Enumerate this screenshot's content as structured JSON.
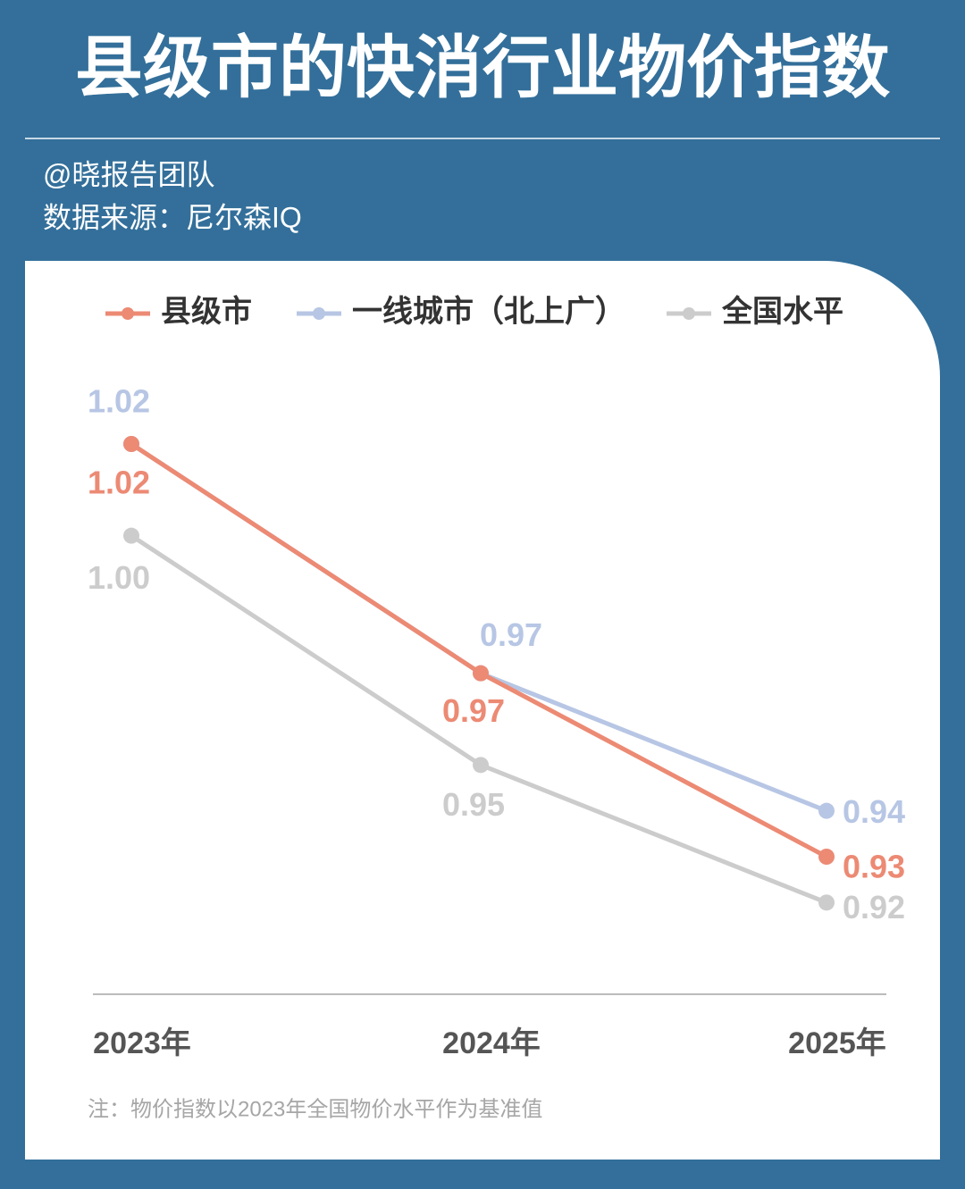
{
  "chart_data": {
    "type": "line",
    "title": "县级市的快消行业物价指数",
    "author": "@晓报告团队",
    "source": "数据来源：尼尔森IQ",
    "note": "注：物价指数以2023年全国物价水平作为基准值",
    "categories": [
      "2023年",
      "2024年",
      "2025年"
    ],
    "series": [
      {
        "name": "县级市",
        "color": "#ec8a74",
        "values": [
          1.02,
          0.97,
          0.93
        ],
        "value_labels": [
          "1.02",
          "0.97",
          "0.93"
        ]
      },
      {
        "name": "一线城市（北上广）",
        "color": "#b7c6e4",
        "values": [
          1.02,
          0.97,
          0.94
        ],
        "value_labels": [
          "1.02",
          "0.97",
          "0.94"
        ]
      },
      {
        "name": "全国水平",
        "color": "#cccccc",
        "values": [
          1.0,
          0.95,
          0.92
        ],
        "value_labels": [
          "1.00",
          "0.95",
          "0.92"
        ]
      }
    ],
    "ylim": [
      0.9,
      1.035
    ],
    "legend": "top"
  }
}
